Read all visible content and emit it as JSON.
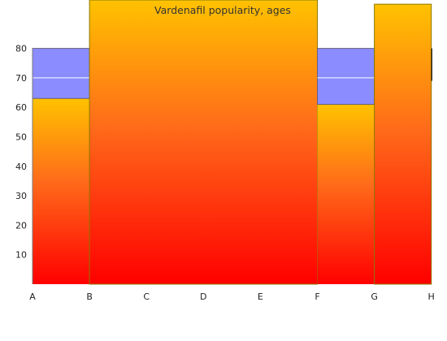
{
  "chart_data": {
    "type": "bar",
    "title": "Vardenafil popularity, ages",
    "xlabel": "",
    "ylabel": "",
    "categories": [
      "A",
      "B",
      "C",
      "D",
      "E",
      "F",
      "G",
      "H"
    ],
    "y_ticks": [
      10,
      20,
      30,
      40,
      50,
      60,
      70,
      80
    ],
    "ylim": [
      0,
      96
    ],
    "bars": [
      {
        "from": "A",
        "to": "B",
        "top": 80,
        "divider": 70,
        "bottom": 63,
        "style": "range"
      },
      {
        "from": "B",
        "to": "F",
        "top": 97,
        "style": "filled"
      },
      {
        "from": "F",
        "to": "G",
        "top": 80,
        "divider": 70,
        "bottom": 61,
        "style": "range"
      },
      {
        "from": "G",
        "to": "H",
        "top": 95,
        "style": "filled"
      }
    ],
    "fill_gradient": {
      "top": "#ffc200",
      "middle": "#ff6a1a",
      "bottom": "#ff0000"
    },
    "range_color": "#8a8cff",
    "grid": false,
    "legend": "none"
  }
}
